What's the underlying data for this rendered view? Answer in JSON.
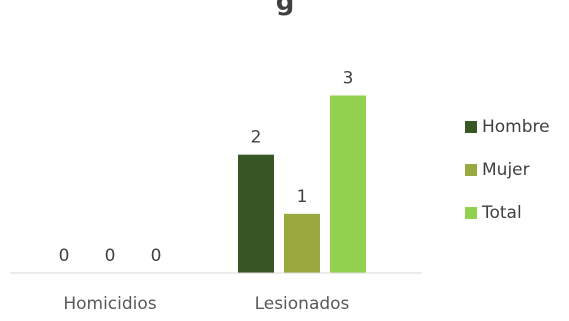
{
  "chart_data": {
    "type": "bar",
    "title": "g",
    "categories": [
      "Homicidios",
      "Lesionados"
    ],
    "series": [
      {
        "name": "Hombre",
        "values": [
          0,
          2
        ],
        "color": "#375623"
      },
      {
        "name": "Mujer",
        "values": [
          0,
          1
        ],
        "color": "#9aa840"
      },
      {
        "name": "Total",
        "values": [
          0,
          3
        ],
        "color": "#92d050"
      }
    ],
    "ylim": [
      0,
      3.6
    ],
    "grid": false,
    "legend_position": "right",
    "data_labels": true
  }
}
